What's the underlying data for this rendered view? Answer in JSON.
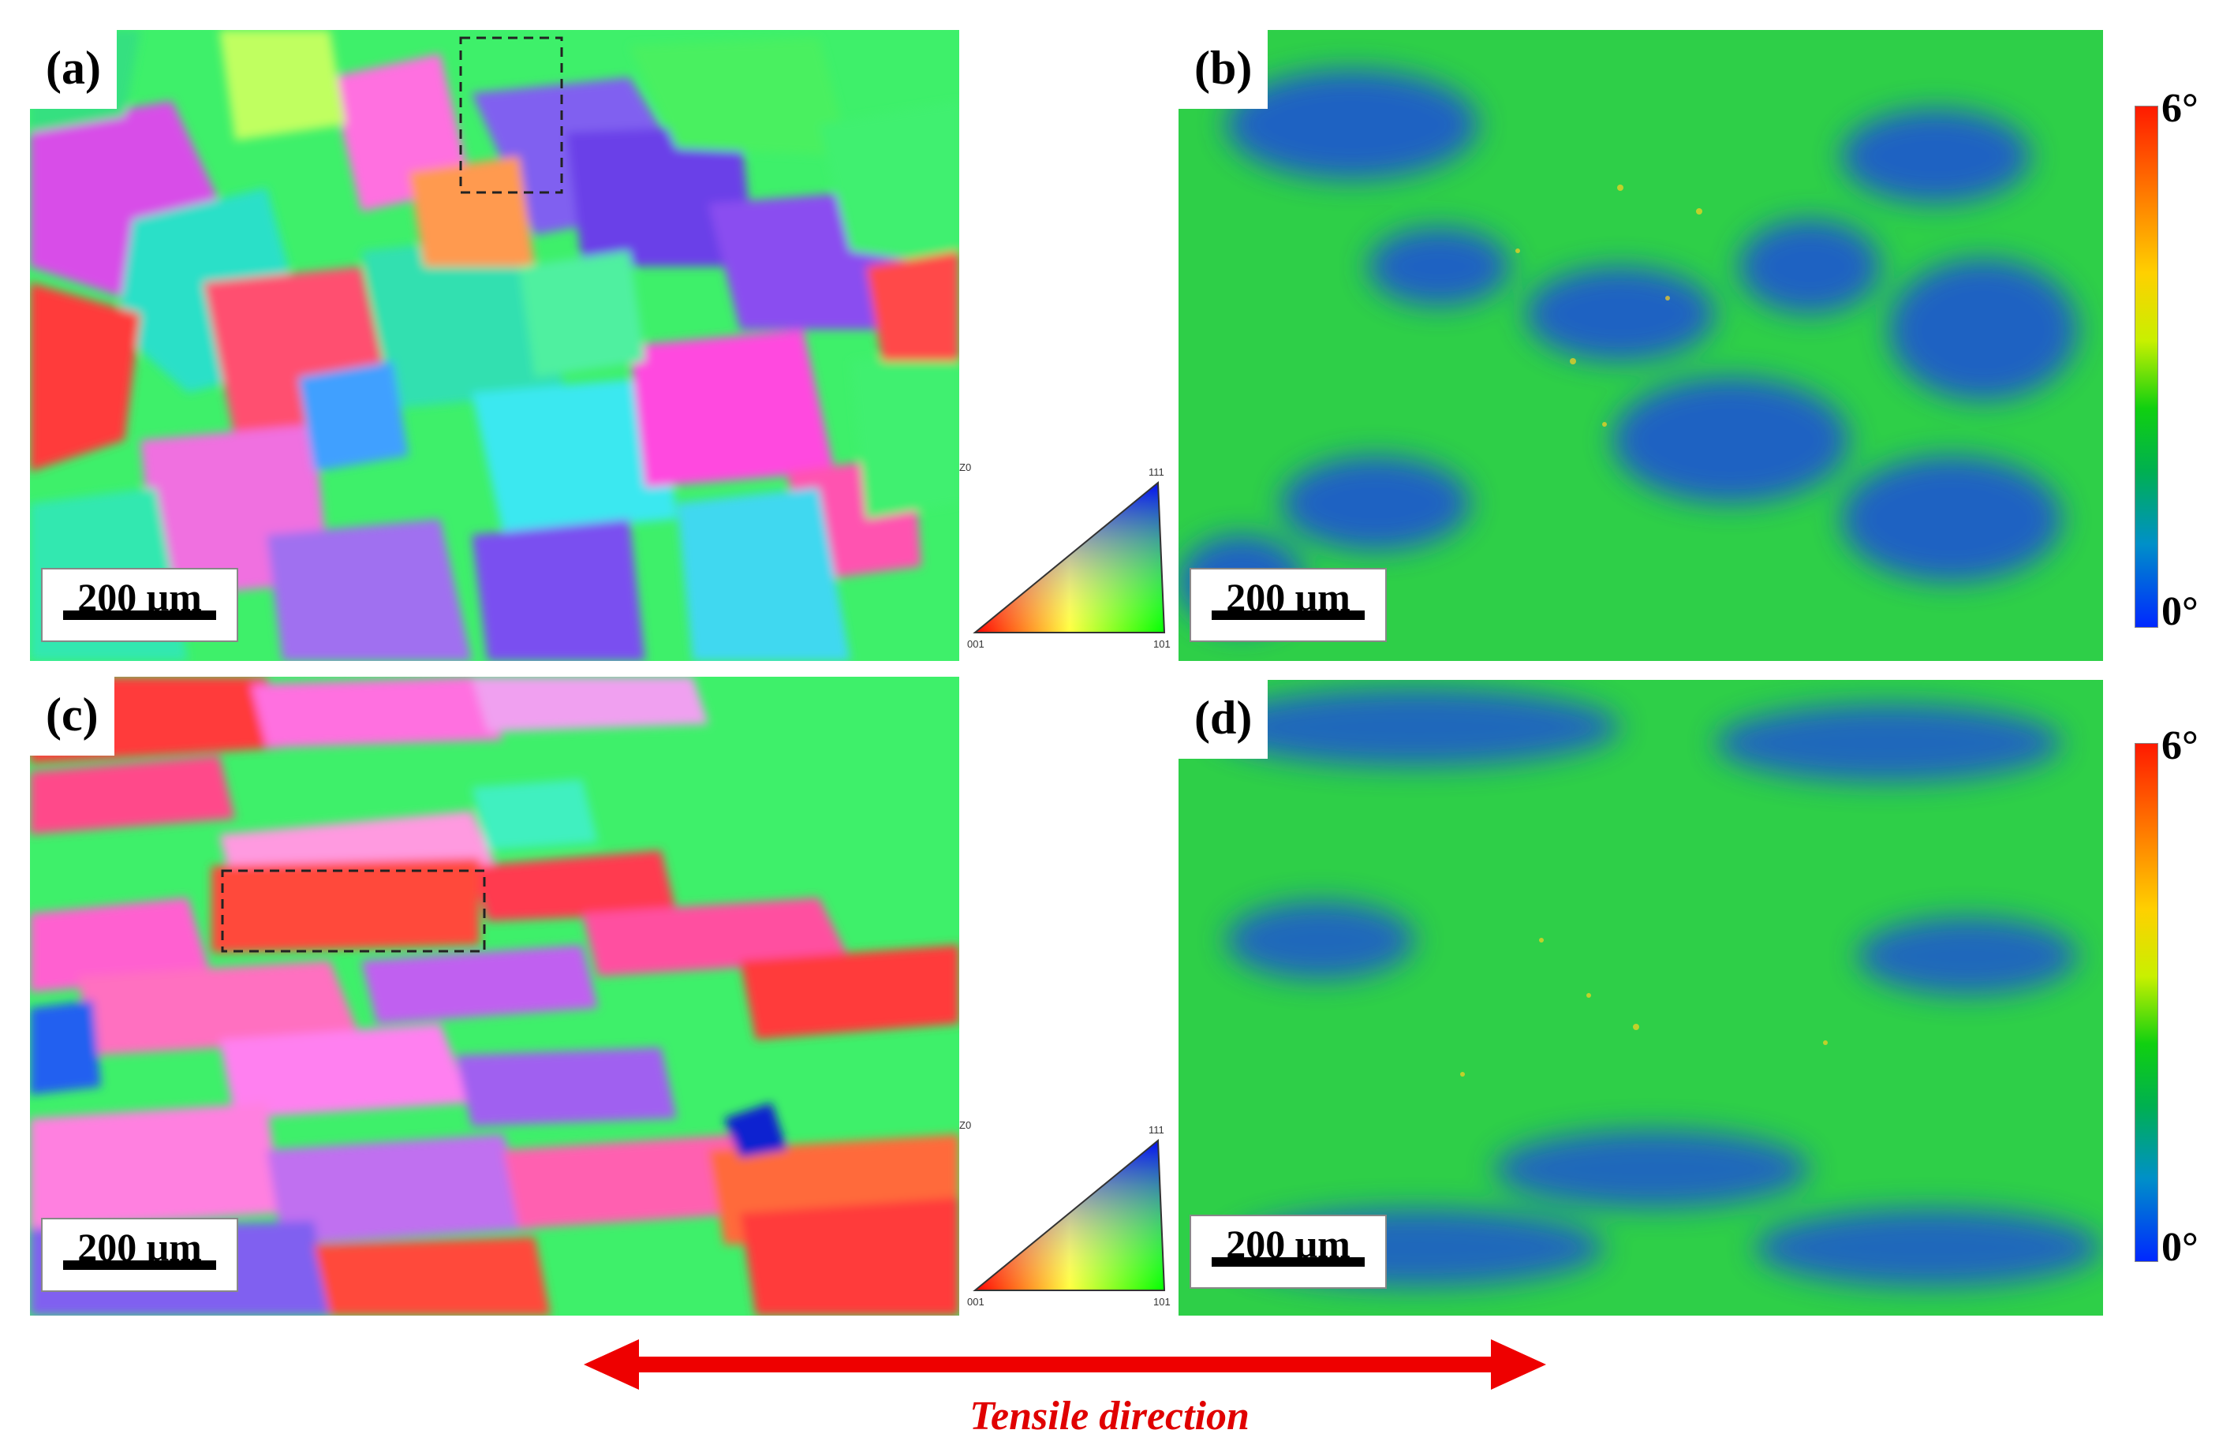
{
  "panels": {
    "a": {
      "label": "(a)",
      "scale": "200 μm"
    },
    "b": {
      "label": "(b)",
      "scale": "200 μm"
    },
    "c": {
      "label": "(c)",
      "scale": "200 μm"
    },
    "d": {
      "label": "(d)",
      "scale": "200 μm"
    }
  },
  "ipf_key": {
    "axis": "Z0",
    "corner_001": "001",
    "corner_101": "101",
    "corner_111": "111"
  },
  "colorbar": {
    "max_label": "6°",
    "min_label": "0°",
    "max_color": "#ff1a00",
    "mid_color": "#10d010",
    "min_color": "#0028ff"
  },
  "annotation": {
    "tensile_label": "Tensile direction",
    "arrow_color": "#ee0000"
  }
}
